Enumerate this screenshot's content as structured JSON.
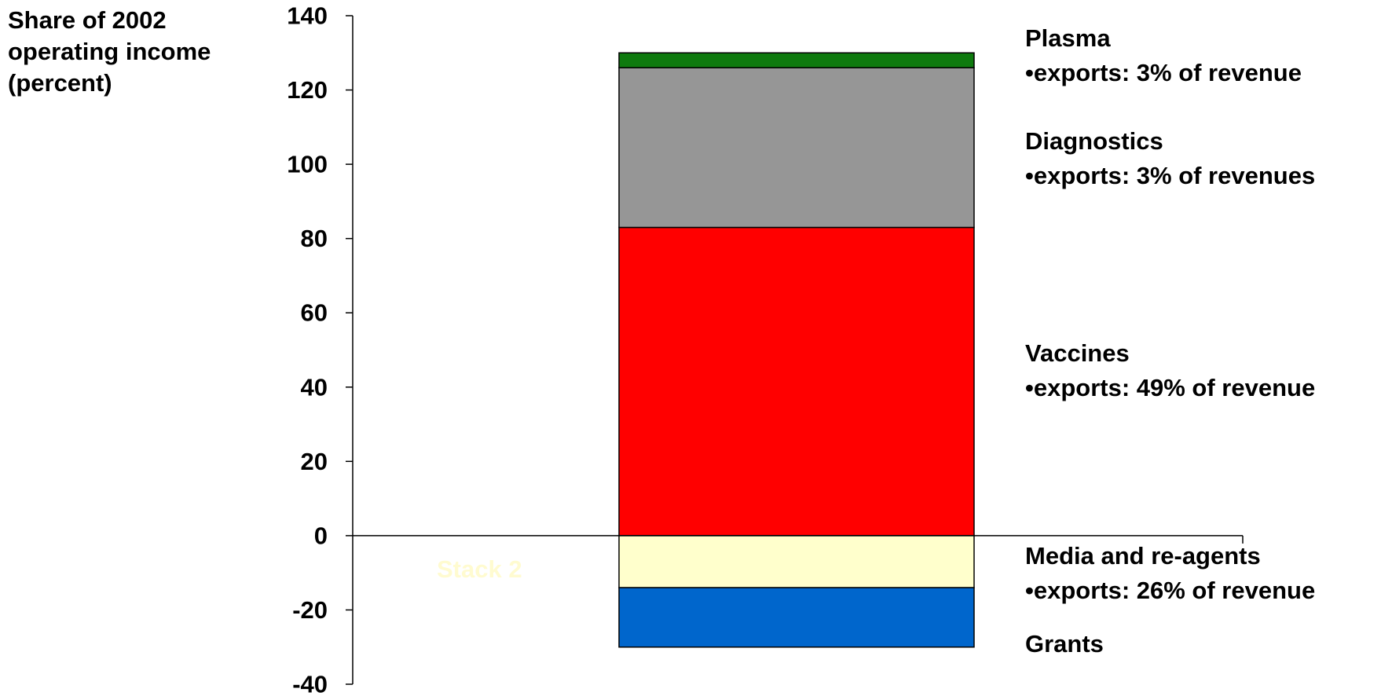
{
  "chart_data": {
    "type": "bar",
    "stacked": true,
    "ylabel": [
      "Share of 2002",
      "operating income",
      "(percent)"
    ],
    "ylim": [
      -40,
      140
    ],
    "yticks": [
      140,
      120,
      100,
      80,
      60,
      40,
      20,
      0,
      -20,
      -40
    ],
    "categories": [
      "Stack 2"
    ],
    "grid": false,
    "series": [
      {
        "name": "Vaccines",
        "values": [
          83
        ],
        "color": "#FF0000"
      },
      {
        "name": "Diagnostics",
        "values": [
          43
        ],
        "color": "#969696"
      },
      {
        "name": "Plasma",
        "values": [
          4
        ],
        "color": "#0E7A0E"
      },
      {
        "name": "Media and re-agents",
        "values": [
          -14
        ],
        "color": "#FFFFCC"
      },
      {
        "name": "Grants",
        "values": [
          -16
        ],
        "color": "#0066CC"
      }
    ],
    "annotations": [
      {
        "title": "Plasma",
        "note": "•exports: 3% of revenue"
      },
      {
        "title": "Diagnostics",
        "note": "•exports: 3% of revenues"
      },
      {
        "title": "Vaccines",
        "note": "•exports: 49% of revenue"
      },
      {
        "title": "Media and re-agents",
        "note": "•exports: 26% of revenue"
      },
      {
        "title": "Grants",
        "note": ""
      }
    ]
  }
}
